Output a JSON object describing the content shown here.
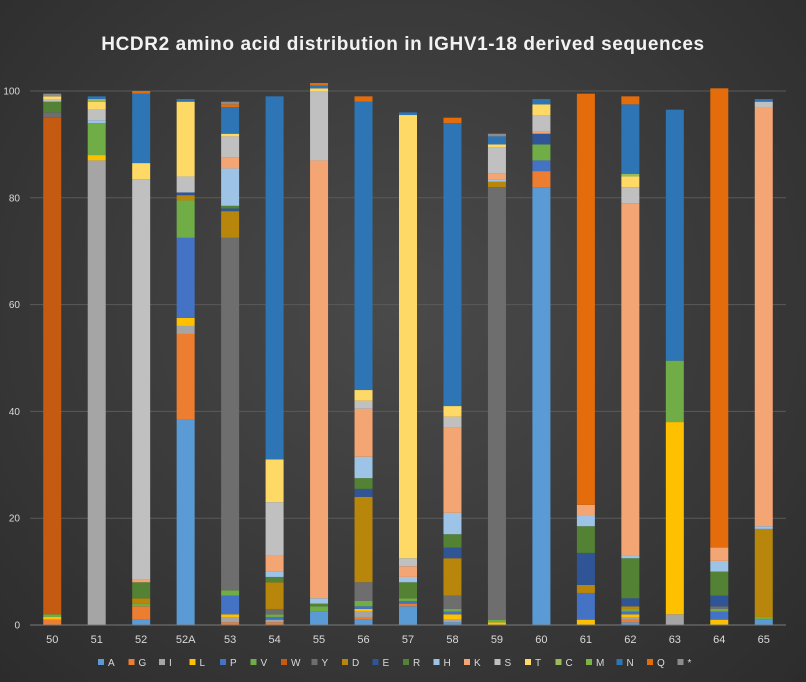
{
  "chart_data": {
    "type": "bar",
    "stacked": true,
    "title": "HCDR2 amino acid distribution in IGHV1-18 derived sequences",
    "xlabel": "",
    "ylabel": "",
    "ylim": [
      0,
      100
    ],
    "yticks": [
      0,
      20,
      40,
      60,
      80,
      100
    ],
    "categories": [
      "50",
      "51",
      "52",
      "52A",
      "53",
      "54",
      "55",
      "56",
      "57",
      "58",
      "59",
      "60",
      "61",
      "62",
      "63",
      "64",
      "65"
    ],
    "legend_position": "bottom",
    "series": [
      {
        "name": "A",
        "color": "#5b9bd5",
        "values": [
          0,
          0,
          1,
          38.5,
          0,
          0,
          2.5,
          1,
          3.5,
          0.5,
          0,
          82,
          0,
          0.5,
          0,
          0,
          1
        ]
      },
      {
        "name": "G",
        "color": "#ed7d31",
        "values": [
          1,
          0,
          2.5,
          16,
          0.5,
          0.5,
          0,
          0.5,
          0.5,
          0,
          0,
          3,
          0,
          0.5,
          0,
          0,
          0
        ]
      },
      {
        "name": "I",
        "color": "#a5a5a5",
        "values": [
          0,
          87,
          0,
          1.5,
          1,
          0.5,
          0,
          1,
          0,
          0.5,
          0,
          0,
          0,
          0.5,
          2,
          0,
          0
        ]
      },
      {
        "name": "L",
        "color": "#ffc000",
        "values": [
          0.5,
          1,
          0,
          1.5,
          0.5,
          0,
          0,
          0.5,
          0,
          1,
          0.5,
          0,
          1,
          0.5,
          36,
          1,
          0
        ]
      },
      {
        "name": "P",
        "color": "#4472c4",
        "values": [
          0,
          0,
          0,
          15,
          3.5,
          0.5,
          0,
          0.5,
          0.5,
          0.5,
          0,
          2,
          5,
          0.5,
          0,
          1.5,
          0
        ]
      },
      {
        "name": "V",
        "color": "#70ad47",
        "values": [
          0.5,
          6,
          0.5,
          7,
          1,
          0.5,
          1,
          1,
          0.5,
          0.5,
          0.5,
          3,
          0,
          0.5,
          11.5,
          0.5,
          0.5
        ]
      },
      {
        "name": "W",
        "color": "#c55a11",
        "values": [
          93,
          0,
          0,
          0,
          0,
          0,
          0,
          0,
          0,
          0,
          0,
          0,
          0,
          0,
          0,
          0,
          0
        ]
      },
      {
        "name": "Y",
        "color": "#6e6e6e",
        "values": [
          1,
          0,
          0,
          0,
          66,
          1,
          0,
          3.5,
          0,
          2.5,
          81,
          0,
          0,
          0,
          0,
          0.5,
          0
        ]
      },
      {
        "name": "D",
        "color": "#b8860b",
        "values": [
          0,
          0,
          1,
          1,
          5,
          5,
          0,
          16,
          0,
          7,
          1,
          0,
          1.5,
          0.5,
          0,
          0,
          16.5
        ]
      },
      {
        "name": "E",
        "color": "#2f5597",
        "values": [
          0,
          0,
          0,
          0.5,
          0.5,
          0,
          0,
          1.5,
          0,
          2,
          0,
          2,
          6,
          1.5,
          0,
          2,
          0
        ]
      },
      {
        "name": "R",
        "color": "#548235",
        "values": [
          2,
          0,
          3,
          0,
          0.5,
          1,
          0.5,
          2,
          3,
          2.5,
          0,
          0,
          5,
          7.5,
          0,
          4.5,
          0
        ]
      },
      {
        "name": "H",
        "color": "#9dc3e6",
        "values": [
          0,
          0.5,
          0,
          0,
          7,
          1,
          1,
          4,
          1,
          4,
          0.5,
          0,
          2,
          0.5,
          0,
          2,
          0.5
        ]
      },
      {
        "name": "K",
        "color": "#f4a574",
        "values": [
          0,
          0,
          0.5,
          0,
          2,
          3,
          82,
          9,
          2,
          16,
          1,
          0.5,
          2,
          66,
          0,
          2.5,
          78.5
        ]
      },
      {
        "name": "S",
        "color": "#c0c0c0",
        "values": [
          0.5,
          2,
          75,
          3,
          4,
          10,
          13,
          1.5,
          1.5,
          2,
          5,
          3,
          0,
          3,
          0,
          0,
          1
        ]
      },
      {
        "name": "T",
        "color": "#ffd966",
        "values": [
          0.5,
          1.5,
          3,
          14,
          0.5,
          8,
          0.5,
          2,
          83,
          2,
          0.5,
          2,
          0,
          2,
          0,
          0,
          0
        ]
      },
      {
        "name": "C",
        "color": "#9bbb59",
        "values": [
          0,
          0.5,
          0,
          0,
          0,
          0,
          0,
          0,
          0,
          0,
          0,
          0,
          0,
          0.5,
          0,
          0,
          0
        ]
      },
      {
        "name": "M",
        "color": "#7cb342",
        "values": [
          0,
          0,
          0,
          0,
          0,
          0,
          0,
          0,
          0,
          0,
          0,
          0,
          0,
          0,
          0,
          0,
          0
        ]
      },
      {
        "name": "N",
        "color": "#2e75b6",
        "values": [
          0,
          0.5,
          13,
          0.5,
          5,
          68,
          0.5,
          54,
          0.5,
          53,
          1.5,
          1,
          0,
          13,
          47,
          0,
          0.5
        ]
      },
      {
        "name": "Q",
        "color": "#e46c0a",
        "values": [
          0,
          0,
          0.5,
          0,
          0.5,
          0,
          0.5,
          1,
          0,
          1,
          0,
          0,
          77,
          1.5,
          0,
          86,
          0
        ]
      },
      {
        "name": "*",
        "color": "#8c8c8c",
        "values": [
          0.5,
          0,
          0,
          0,
          0.5,
          0,
          0,
          0,
          0,
          0,
          0.5,
          0,
          0,
          0,
          0,
          0,
          0
        ]
      }
    ]
  }
}
